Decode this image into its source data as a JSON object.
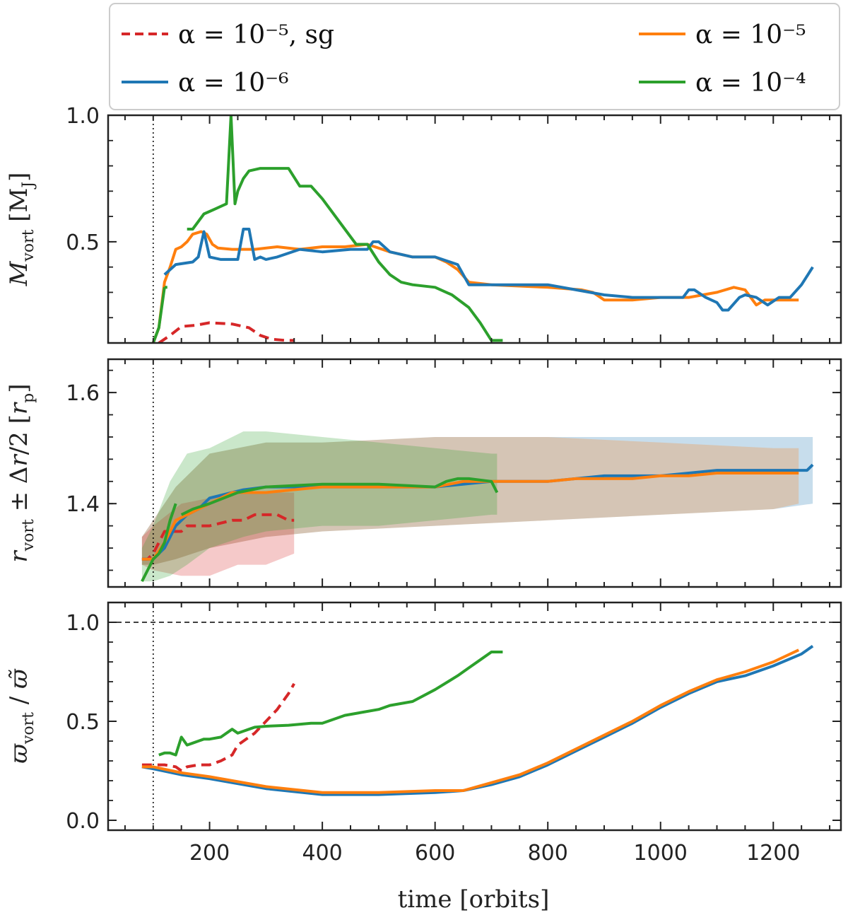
{
  "figure_title": "",
  "legend": {
    "entries": [
      {
        "label": "α = 10⁻⁵, sg",
        "color": "#d62728",
        "dashed": true
      },
      {
        "label": "α = 10⁻⁵",
        "color": "#ff7f0e",
        "dashed": false
      },
      {
        "label": "α = 10⁻⁶",
        "color": "#1f77b4",
        "dashed": false
      },
      {
        "label": "α = 10⁻⁴",
        "color": "#2ca02c",
        "dashed": false
      }
    ]
  },
  "colors": {
    "sg": "#d62728",
    "a5": "#ff7f0e",
    "a6": "#1f77b4",
    "a4": "#2ca02c"
  },
  "chart_data": [
    {
      "type": "line",
      "ylabel": "M_vort [M_J]",
      "xlim": [
        20,
        1320
      ],
      "ylim": [
        0.1,
        1.0
      ],
      "yticks": [
        0.5,
        1.0
      ],
      "ytick_labels": [
        "0.5",
        "1.0"
      ],
      "vline_x": 100,
      "series": [
        {
          "name": "α = 10⁻⁵, sg",
          "color_key": "sg",
          "dashed": true,
          "x": [
            110,
            130,
            150,
            175,
            200,
            240,
            270,
            290,
            310,
            335,
            350
          ],
          "y": [
            0.1,
            0.13,
            0.165,
            0.17,
            0.18,
            0.175,
            0.16,
            0.13,
            0.115,
            0.11,
            0.11
          ]
        },
        {
          "name": "α = 10⁻⁵",
          "color_key": "a5",
          "x": [
            100,
            110,
            120,
            130,
            140,
            150,
            160,
            170,
            185,
            195,
            205,
            215,
            240,
            280,
            320,
            360,
            400,
            440,
            480,
            520,
            560,
            600,
            620,
            640,
            660,
            700,
            800,
            860,
            880,
            900,
            950,
            1000,
            1050,
            1100,
            1130,
            1150,
            1170,
            1185,
            1200,
            1245
          ],
          "y": [
            0.1,
            0.16,
            0.34,
            0.4,
            0.47,
            0.48,
            0.5,
            0.53,
            0.54,
            0.53,
            0.49,
            0.475,
            0.47,
            0.47,
            0.48,
            0.47,
            0.48,
            0.48,
            0.49,
            0.46,
            0.44,
            0.44,
            0.42,
            0.39,
            0.34,
            0.33,
            0.32,
            0.31,
            0.3,
            0.27,
            0.27,
            0.28,
            0.28,
            0.3,
            0.32,
            0.31,
            0.25,
            0.27,
            0.27,
            0.27
          ]
        },
        {
          "name": "α = 10⁻⁶",
          "color_key": "a6",
          "x": [
            120,
            140,
            170,
            180,
            190,
            200,
            220,
            250,
            260,
            270,
            280,
            290,
            300,
            320,
            360,
            400,
            450,
            480,
            490,
            500,
            520,
            560,
            600,
            640,
            660,
            700,
            800,
            850,
            900,
            950,
            1000,
            1040,
            1050,
            1060,
            1080,
            1100,
            1110,
            1120,
            1140,
            1150,
            1170,
            1190,
            1210,
            1230,
            1250,
            1270
          ],
          "y": [
            0.37,
            0.41,
            0.42,
            0.44,
            0.54,
            0.44,
            0.43,
            0.43,
            0.55,
            0.55,
            0.43,
            0.44,
            0.43,
            0.44,
            0.47,
            0.46,
            0.47,
            0.47,
            0.5,
            0.5,
            0.46,
            0.44,
            0.44,
            0.41,
            0.33,
            0.33,
            0.33,
            0.31,
            0.29,
            0.28,
            0.28,
            0.28,
            0.31,
            0.31,
            0.28,
            0.26,
            0.23,
            0.23,
            0.28,
            0.29,
            0.28,
            0.25,
            0.28,
            0.28,
            0.33,
            0.4
          ]
        },
        {
          "name": "α = 10⁻⁴",
          "color_key": "a4",
          "x": [
            100,
            110,
            120
          ],
          "y": [
            0.1,
            0.16,
            0.32
          ]
        },
        {
          "name": "α = 10⁻⁴",
          "color_key": "a4",
          "x": [
            120,
            125
          ],
          "y": [
            0.32,
            0.32
          ]
        },
        {
          "name": "α = 10⁻⁴",
          "color_key": "a4",
          "x": [
            160,
            170,
            180,
            190,
            200,
            210,
            220,
            230,
            238,
            245,
            250,
            260,
            270,
            290,
            310,
            340,
            360,
            380,
            400,
            440,
            460,
            480,
            500,
            520,
            540,
            560,
            600,
            630,
            660,
            680,
            700,
            720
          ],
          "y": [
            0.55,
            0.55,
            0.58,
            0.61,
            0.62,
            0.63,
            0.64,
            0.65,
            1.0,
            0.65,
            0.7,
            0.75,
            0.78,
            0.79,
            0.79,
            0.79,
            0.72,
            0.72,
            0.67,
            0.55,
            0.49,
            0.49,
            0.42,
            0.37,
            0.34,
            0.33,
            0.32,
            0.29,
            0.24,
            0.18,
            0.11,
            0.11
          ]
        }
      ]
    },
    {
      "type": "line",
      "ylabel": "r_vort ± Δr/2 [r_p]",
      "xlim": [
        20,
        1320
      ],
      "ylim": [
        1.25,
        1.66
      ],
      "yticks": [
        1.4,
        1.6
      ],
      "ytick_labels": [
        "1.4",
        "1.6"
      ],
      "vline_x": 100,
      "bands": [
        {
          "color_key": "a6",
          "x": [
            80,
            100,
            140,
            200,
            300,
            400,
            600,
            800,
            1000,
            1200,
            1270
          ],
          "lower": [
            1.29,
            1.29,
            1.3,
            1.32,
            1.34,
            1.35,
            1.36,
            1.37,
            1.38,
            1.39,
            1.4
          ],
          "upper": [
            1.34,
            1.37,
            1.43,
            1.49,
            1.51,
            1.51,
            1.52,
            1.52,
            1.52,
            1.52,
            1.52
          ]
        },
        {
          "color_key": "a5",
          "x": [
            80,
            100,
            140,
            200,
            300,
            400,
            600,
            800,
            1000,
            1200,
            1245
          ],
          "lower": [
            1.29,
            1.29,
            1.3,
            1.32,
            1.34,
            1.35,
            1.36,
            1.37,
            1.38,
            1.39,
            1.4
          ],
          "upper": [
            1.34,
            1.37,
            1.43,
            1.49,
            1.51,
            1.51,
            1.52,
            1.52,
            1.51,
            1.5,
            1.5
          ]
        },
        {
          "color_key": "sg",
          "x": [
            80,
            100,
            150,
            200,
            250,
            300,
            350
          ],
          "lower": [
            1.29,
            1.28,
            1.27,
            1.27,
            1.29,
            1.29,
            1.31
          ],
          "upper": [
            1.34,
            1.36,
            1.4,
            1.41,
            1.42,
            1.42,
            1.42
          ]
        },
        {
          "color_key": "a4",
          "x": [
            80,
            100,
            130,
            160,
            200,
            260,
            300,
            400,
            500,
            600,
            700,
            710
          ],
          "lower": [
            1.26,
            1.26,
            1.27,
            1.29,
            1.32,
            1.34,
            1.35,
            1.36,
            1.36,
            1.37,
            1.38,
            1.38
          ],
          "upper": [
            1.32,
            1.36,
            1.44,
            1.49,
            1.5,
            1.53,
            1.53,
            1.52,
            1.51,
            1.5,
            1.49,
            1.49
          ]
        }
      ],
      "series": [
        {
          "name": "α = 10⁻⁵, sg",
          "color_key": "sg",
          "dashed": true,
          "x": [
            80,
            90,
            100,
            110,
            120,
            130,
            140,
            150,
            160,
            200,
            240,
            260,
            280,
            300,
            320,
            340,
            350
          ],
          "y": [
            1.3,
            1.3,
            1.31,
            1.33,
            1.35,
            1.35,
            1.35,
            1.35,
            1.36,
            1.36,
            1.37,
            1.37,
            1.38,
            1.38,
            1.38,
            1.37,
            1.37
          ]
        },
        {
          "name": "α = 10⁻⁶",
          "color_key": "a6",
          "x": [
            80,
            100,
            120,
            140,
            160,
            180,
            200,
            240,
            260,
            300,
            400,
            500,
            600,
            700,
            800,
            900,
            1000,
            1100,
            1200,
            1260,
            1270
          ],
          "y": [
            1.3,
            1.3,
            1.32,
            1.36,
            1.38,
            1.39,
            1.41,
            1.42,
            1.425,
            1.43,
            1.43,
            1.43,
            1.43,
            1.44,
            1.44,
            1.45,
            1.45,
            1.46,
            1.46,
            1.46,
            1.47
          ]
        },
        {
          "name": "α = 10⁻⁵",
          "color_key": "a5",
          "x": [
            80,
            100,
            120,
            140,
            160,
            180,
            200,
            220,
            240,
            300,
            400,
            450,
            500,
            550,
            600,
            650,
            700,
            750,
            800,
            850,
            900,
            950,
            1000,
            1050,
            1100,
            1150,
            1200,
            1245
          ],
          "y": [
            1.3,
            1.3,
            1.33,
            1.37,
            1.38,
            1.39,
            1.4,
            1.41,
            1.42,
            1.42,
            1.43,
            1.43,
            1.43,
            1.43,
            1.43,
            1.44,
            1.44,
            1.44,
            1.44,
            1.445,
            1.445,
            1.445,
            1.45,
            1.45,
            1.455,
            1.455,
            1.455,
            1.455
          ]
        },
        {
          "name": "α = 10⁻⁴",
          "color_key": "a4",
          "x": [
            80,
            95,
            100,
            110,
            120,
            130,
            140
          ],
          "y": [
            1.26,
            1.29,
            1.3,
            1.31,
            1.33,
            1.37,
            1.4
          ]
        },
        {
          "name": "α = 10⁻⁴",
          "color_key": "a4",
          "x": [
            150,
            170,
            200,
            250,
            300,
            400,
            500,
            600,
            620,
            640,
            660,
            700,
            710
          ],
          "y": [
            1.38,
            1.39,
            1.4,
            1.42,
            1.43,
            1.435,
            1.435,
            1.43,
            1.44,
            1.445,
            1.445,
            1.44,
            1.42
          ]
        }
      ]
    },
    {
      "type": "line",
      "ylabel": "ϖ_vort / ϖ̃",
      "xlabel": "time [orbits]",
      "xlim": [
        20,
        1320
      ],
      "ylim": [
        -0.05,
        1.1
      ],
      "yticks": [
        0.0,
        0.5,
        1.0
      ],
      "ytick_labels": [
        "0.0",
        "0.5",
        "1.0"
      ],
      "xticks": [
        200,
        400,
        600,
        800,
        1000,
        1200
      ],
      "xtick_labels": [
        "200",
        "400",
        "600",
        "800",
        "1000",
        "1200"
      ],
      "vline_x": 100,
      "hline_y": 1.0,
      "series": [
        {
          "name": "α = 10⁻⁵, sg",
          "color_key": "sg",
          "dashed": true,
          "x": [
            80,
            100,
            120,
            140,
            150,
            160,
            180,
            200,
            220,
            240,
            250,
            260,
            280,
            300,
            320,
            340,
            350
          ],
          "y": [
            0.28,
            0.28,
            0.28,
            0.27,
            0.25,
            0.27,
            0.28,
            0.28,
            0.3,
            0.33,
            0.38,
            0.4,
            0.44,
            0.5,
            0.56,
            0.64,
            0.69
          ]
        },
        {
          "name": "α = 10⁻⁴",
          "color_key": "a4",
          "x": [
            110,
            120,
            130,
            140,
            150,
            160,
            170,
            180,
            190,
            200,
            220,
            240,
            250,
            260,
            270,
            280,
            300,
            340,
            380,
            400,
            440,
            500,
            520,
            560,
            600,
            640,
            660,
            680,
            700,
            720
          ],
          "y": [
            0.33,
            0.34,
            0.34,
            0.33,
            0.42,
            0.38,
            0.39,
            0.4,
            0.41,
            0.41,
            0.42,
            0.46,
            0.44,
            0.45,
            0.46,
            0.47,
            0.475,
            0.48,
            0.49,
            0.49,
            0.53,
            0.56,
            0.58,
            0.6,
            0.66,
            0.73,
            0.77,
            0.81,
            0.85,
            0.85
          ]
        },
        {
          "name": "α = 10⁻⁶",
          "color_key": "a6",
          "x": [
            80,
            100,
            150,
            200,
            300,
            400,
            500,
            600,
            650,
            700,
            750,
            800,
            850,
            900,
            950,
            1000,
            1050,
            1100,
            1150,
            1200,
            1250,
            1270
          ],
          "y": [
            0.27,
            0.26,
            0.23,
            0.21,
            0.16,
            0.13,
            0.13,
            0.14,
            0.15,
            0.18,
            0.22,
            0.28,
            0.35,
            0.42,
            0.49,
            0.57,
            0.64,
            0.7,
            0.73,
            0.78,
            0.84,
            0.88
          ]
        },
        {
          "name": "α = 10⁻⁵",
          "color_key": "a5",
          "x": [
            80,
            100,
            150,
            200,
            300,
            400,
            500,
            600,
            650,
            700,
            750,
            800,
            850,
            900,
            950,
            1000,
            1050,
            1100,
            1150,
            1200,
            1245
          ],
          "y": [
            0.27,
            0.27,
            0.24,
            0.22,
            0.17,
            0.14,
            0.14,
            0.15,
            0.15,
            0.19,
            0.23,
            0.29,
            0.36,
            0.43,
            0.5,
            0.58,
            0.65,
            0.71,
            0.75,
            0.8,
            0.86
          ]
        }
      ]
    }
  ]
}
